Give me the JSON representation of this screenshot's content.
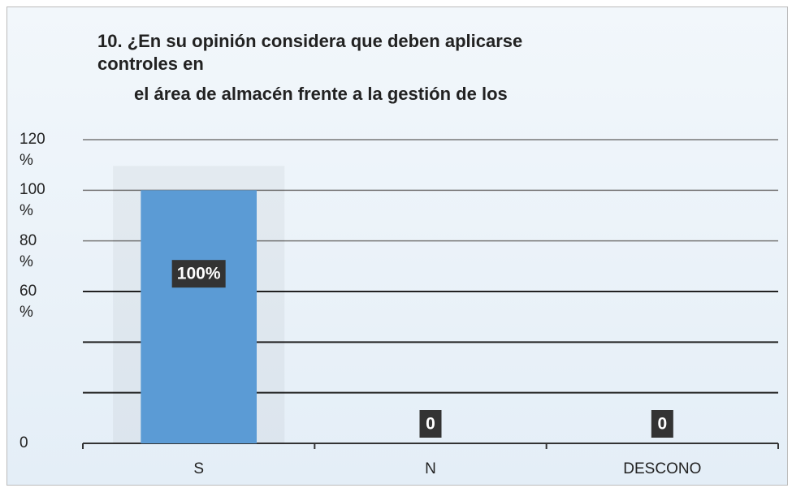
{
  "chart_data": {
    "type": "bar",
    "title": [
      "10. ¿En su opinión considera que deben aplicarse",
      "controles en",
      "el área de almacén frente a la gestión de los"
    ],
    "categories": [
      "S",
      "N",
      "DESCONO"
    ],
    "values": [
      100,
      0,
      0
    ],
    "value_labels": [
      "100%",
      "0",
      "0"
    ],
    "color": "#5b9bd5",
    "ylim": [
      0,
      120
    ],
    "yticks": [
      0,
      {
        "value": 60,
        "label": "60 %"
      },
      {
        "value": 80,
        "label": "80 %"
      },
      {
        "value": 100,
        "label": "100 %"
      },
      {
        "value": 120,
        "label": "120 %"
      }
    ],
    "ygrid": [
      20,
      40,
      60,
      80,
      100,
      120
    ],
    "grid": true
  }
}
